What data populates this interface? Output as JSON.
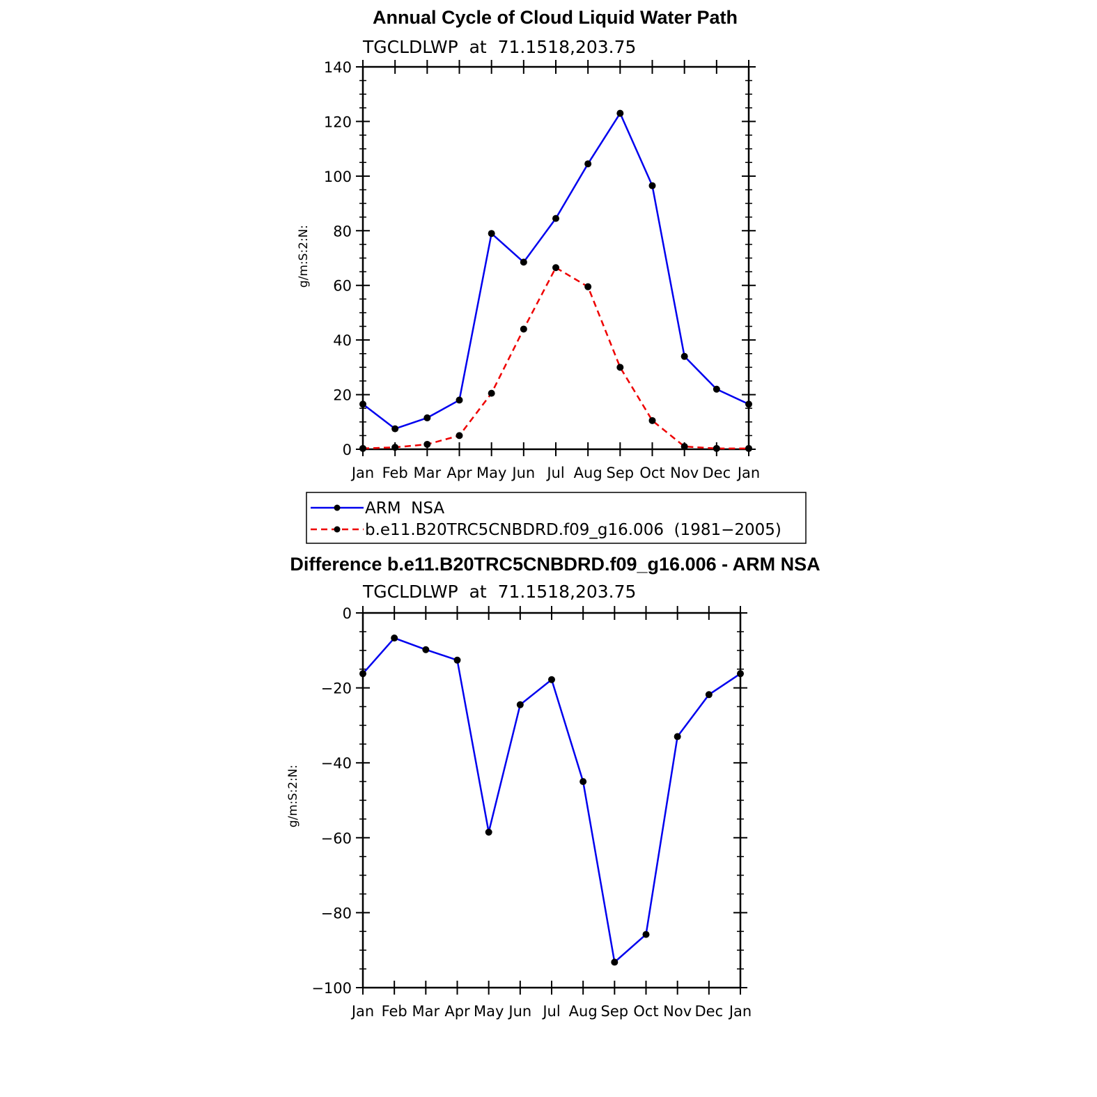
{
  "charts": {
    "top": {
      "title": "Annual Cycle of Cloud Liquid Water Path",
      "subtitle": "TGCLDLWP  at  71.1518,203.75",
      "ylabel": "g/m:S:2:N:",
      "legend": {
        "arm_label": "ARM  NSA",
        "model_label": "b.e11.B20TRC5CNBDRD.f09_g16.006  (1981−2005)"
      }
    },
    "bottom": {
      "title": "Difference b.e11.B20TRC5CNBDRD.f09_g16.006 - ARM NSA",
      "subtitle": "TGCLDLWP  at  71.1518,203.75",
      "ylabel": "g/m:S:2:N:"
    }
  },
  "chart_data": [
    {
      "type": "line",
      "title": "Annual Cycle of Cloud Liquid Water Path",
      "subtitle": "TGCLDLWP  at  71.1518,203.75",
      "ylabel": "g/m:S:2:N:",
      "categories": [
        "Jan",
        "Feb",
        "Mar",
        "Apr",
        "May",
        "Jun",
        "Jul",
        "Aug",
        "Sep",
        "Oct",
        "Nov",
        "Dec",
        "Jan"
      ],
      "ylim": [
        0,
        140
      ],
      "yticks": [
        0,
        20,
        40,
        60,
        80,
        100,
        120,
        140
      ],
      "series": [
        {
          "name": "ARM  NSA",
          "color": "#0000ee",
          "dash": "solid",
          "values": [
            16.5,
            7.5,
            11.5,
            18,
            79,
            68.5,
            84.5,
            104.5,
            123,
            96.5,
            34,
            22,
            16.5
          ]
        },
        {
          "name": "b.e11.B20TRC5CNBDRD.f09_g16.006  (1981−2005)",
          "color": "#ee0000",
          "dash": "dashed",
          "values": [
            0.3,
            0.7,
            1.8,
            5,
            20.5,
            44,
            66.5,
            59.5,
            30,
            10.5,
            1,
            0.3,
            0.3
          ]
        }
      ]
    },
    {
      "type": "line",
      "title": "Difference b.e11.B20TRC5CNBDRD.f09_g16.006 - ARM NSA",
      "subtitle": "TGCLDLWP  at  71.1518,203.75",
      "ylabel": "g/m:S:2:N:",
      "categories": [
        "Jan",
        "Feb",
        "Mar",
        "Apr",
        "May",
        "Jun",
        "Jul",
        "Aug",
        "Sep",
        "Oct",
        "Nov",
        "Dec",
        "Jan"
      ],
      "ylim": [
        -100,
        0
      ],
      "yticks": [
        0,
        -20,
        -40,
        -60,
        -80,
        -100
      ],
      "series": [
        {
          "color": "#0000ee",
          "dash": "solid",
          "values": [
            -16.2,
            -6.7,
            -9.8,
            -12.6,
            -58.5,
            -24.5,
            -17.8,
            -45,
            -93.2,
            -85.8,
            -33,
            -21.8,
            -16.2
          ]
        }
      ]
    }
  ]
}
